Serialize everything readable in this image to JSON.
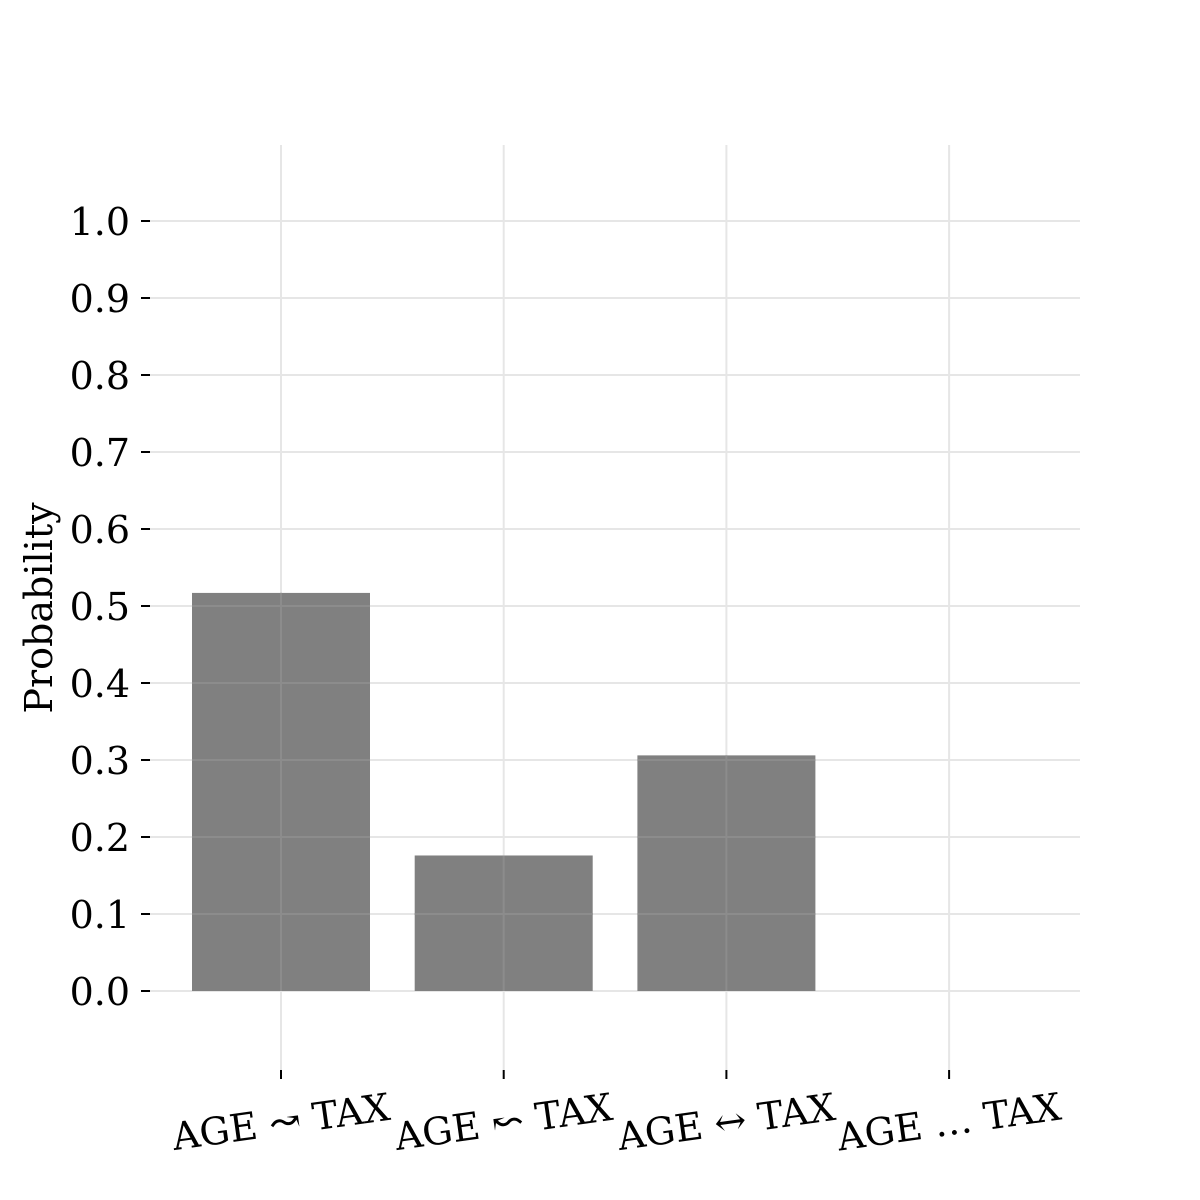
{
  "chart_data": {
    "type": "bar",
    "title": "",
    "xlabel": "",
    "ylabel": "Probability",
    "categories": [
      "AGE ↝ TAX",
      "AGE ↜ TAX",
      "AGE ↔ TAX",
      "AGE … TAX"
    ],
    "values": [
      0.517,
      0.176,
      0.306,
      0.0
    ],
    "ylim": [
      0.0,
      1.0
    ],
    "yticks": [
      "0.0",
      "0.1",
      "0.2",
      "0.3",
      "0.4",
      "0.5",
      "0.6",
      "0.7",
      "0.8",
      "0.9",
      "1.0"
    ],
    "grid": true,
    "bar_color": "#808080",
    "grid_color": "#e6e6e6"
  }
}
